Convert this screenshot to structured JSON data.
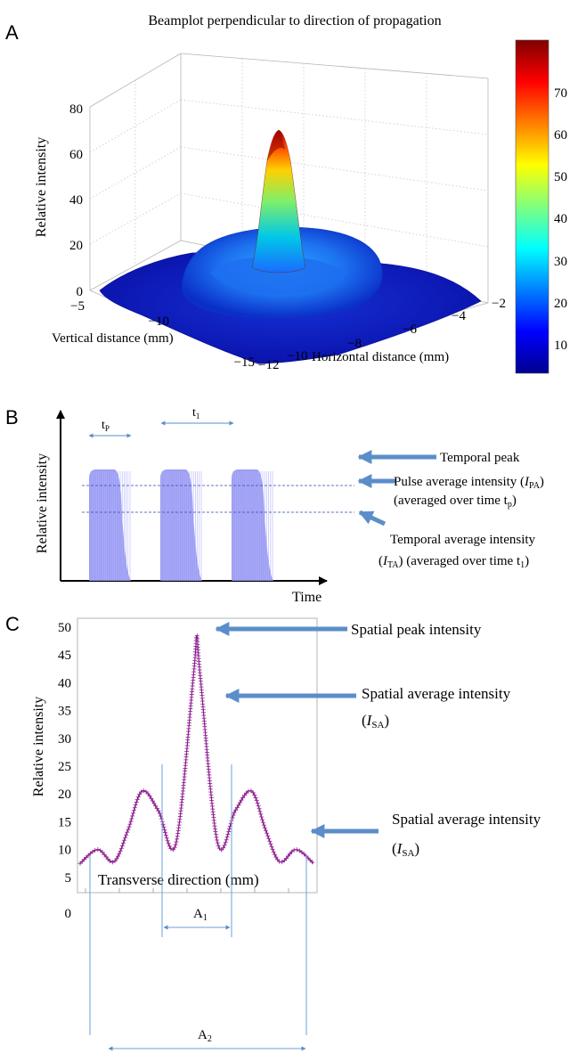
{
  "chart_data": [
    {
      "panel": "A",
      "type": "surface",
      "title": "Beamplot perpendicular to direction of propagation",
      "zlabel": "Relative intensity",
      "xlabel": "Horizontal distance (mm)",
      "ylabel": "Vertical distance (mm)",
      "zticks": [
        "0",
        "20",
        "40",
        "60",
        "80"
      ],
      "xticks": [
        "−12",
        "−10",
        "−8",
        "−6",
        "−4",
        "−2"
      ],
      "yticks": [
        "−15",
        "−10",
        "−5"
      ],
      "zlim": [
        0,
        80
      ],
      "peak": 70,
      "colorbar": {
        "ticks": [
          "10",
          "20",
          "30",
          "40",
          "50",
          "60",
          "70"
        ],
        "range": [
          2,
          80
        ],
        "colormap": "jet"
      },
      "grid": true
    },
    {
      "panel": "B",
      "type": "pulse-train",
      "ylabel": "Relative intensity",
      "xlabel": "Time",
      "pulse_count": 3,
      "pulse_label": "t_P",
      "period_label": "t_1",
      "pulse_color": "#8c8cf0",
      "annotations": [
        {
          "id": "temporal_peak",
          "lines": [
            "Temporal peak"
          ]
        },
        {
          "id": "pulse_average",
          "lines": [
            "Pulse average intensity (I_PA)",
            "(averaged over time t_p)"
          ]
        },
        {
          "id": "temporal_average",
          "lines": [
            "Temporal average intensity",
            "(I_TA) (averaged over time t_1)"
          ]
        }
      ],
      "arrow_color": "#5b8ec9"
    },
    {
      "panel": "C",
      "type": "line",
      "ylabel": "Relative intensity",
      "xlabel": "Transverse direction (mm)",
      "yticks": [
        "0",
        "5",
        "10",
        "15",
        "20",
        "25",
        "30",
        "35",
        "40",
        "45",
        "50"
      ],
      "ylim": [
        0,
        50
      ],
      "series_color": "#8b1a8b",
      "profile": {
        "x": [
          -1,
          -0.85,
          -0.71,
          -0.59,
          -0.47,
          -0.33,
          -0.18,
          -0.03,
          0,
          0.03,
          0.18,
          0.33,
          0.47,
          0.59,
          0.71,
          0.85,
          1
        ],
        "y": [
          7.5,
          10,
          7.8,
          13.5,
          20.5,
          17,
          11,
          41,
          48.5,
          41,
          11,
          17,
          20.5,
          13.5,
          7.8,
          10,
          7.5
        ]
      },
      "annotations": [
        {
          "id": "spatial_peak",
          "lines": [
            "Spatial peak intensity"
          ]
        },
        {
          "id": "spatial_average_1",
          "lines": [
            "Spatial average intensity",
            "(I_SA)"
          ]
        },
        {
          "id": "spatial_average_2",
          "lines": [
            "Spatial average intensity",
            "(I_SA)"
          ]
        }
      ],
      "widths": [
        {
          "id": "A1",
          "label": "A_1"
        },
        {
          "id": "A2",
          "label": "A_2"
        }
      ],
      "arrow_color": "#5b8ec9"
    }
  ],
  "panel_labels": [
    "A",
    "B",
    "C"
  ]
}
